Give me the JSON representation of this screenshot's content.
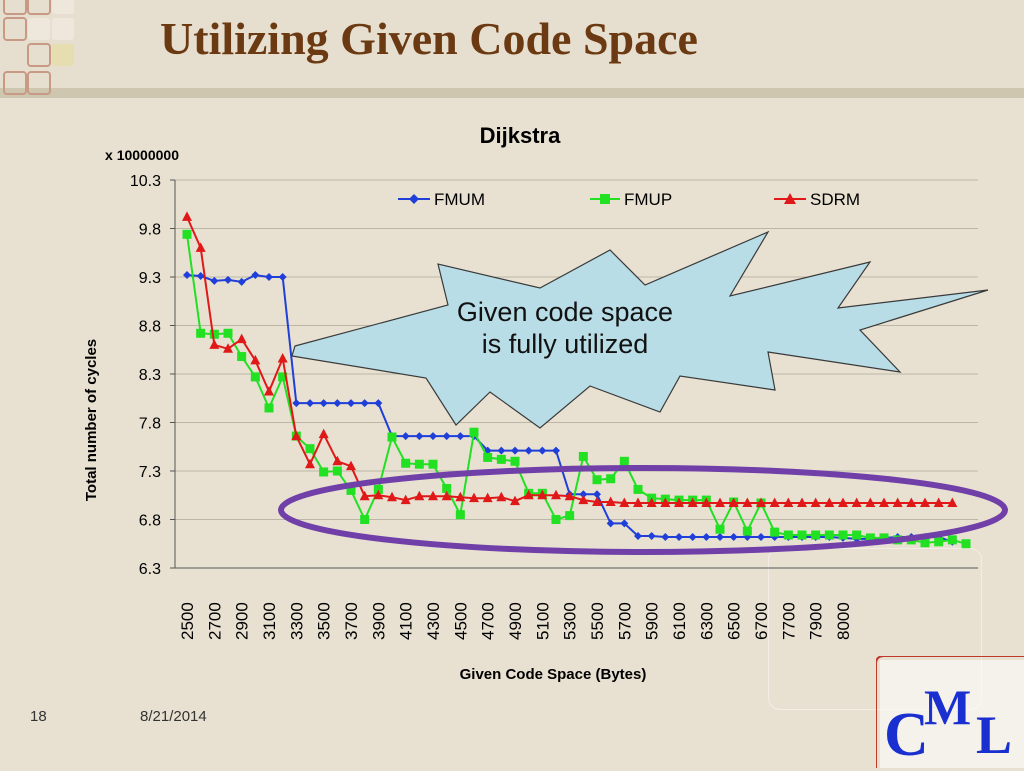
{
  "slide": {
    "title": "Utilizing Given Code Space",
    "page_number": "18",
    "date": "8/21/2014",
    "logo": {
      "c": "C",
      "m": "M",
      "l": "L"
    }
  },
  "callout": {
    "line1": "Given code space",
    "line2": "is fully utilized"
  },
  "colors": {
    "fmum": "#1f3fd8",
    "fmup": "#22e022",
    "sdrm": "#e01818",
    "ellipse": "#7040a8",
    "callout_fill": "#b8dde6",
    "title": "#6b3a12"
  },
  "chart_data": {
    "type": "line",
    "title": "Dijkstra",
    "multiplier_label": "x 10000000",
    "xlabel": "Given Code Space (Bytes)",
    "ylabel": "Total number of cycles",
    "ylim": [
      6.3,
      10.3
    ],
    "yticks": [
      "10.3",
      "9.8",
      "9.3",
      "8.8",
      "8.3",
      "7.8",
      "7.3",
      "6.8",
      "6.3"
    ],
    "ytick_values": [
      10.3,
      9.8,
      9.3,
      8.8,
      8.3,
      7.8,
      7.3,
      6.8,
      6.3
    ],
    "xtick_labels": [
      "2500",
      "2700",
      "2900",
      "3100",
      "3300",
      "3500",
      "3700",
      "3900",
      "4100",
      "4300",
      "4500",
      "4700",
      "4900",
      "5100",
      "5300",
      "5500",
      "5700",
      "5900",
      "6100",
      "6300",
      "6500",
      "6700",
      "7700",
      "7900",
      "8000"
    ],
    "legend_position": "top",
    "grid": true,
    "series": [
      {
        "name": "FMUM",
        "marker": "diamond",
        "values": [
          9.32,
          9.31,
          9.26,
          9.27,
          9.25,
          9.32,
          9.3,
          9.3,
          8.0,
          8.0,
          8.0,
          8.0,
          8.0,
          8.0,
          8.0,
          7.66,
          7.66,
          7.66,
          7.66,
          7.66,
          7.66,
          7.66,
          7.51,
          7.51,
          7.51,
          7.51,
          7.51,
          7.51,
          7.06,
          7.06,
          7.06,
          6.76,
          6.76,
          6.63,
          6.63,
          6.62,
          6.62,
          6.62,
          6.62,
          6.62,
          6.62,
          6.62,
          6.62,
          6.62,
          6.62,
          6.62,
          6.62,
          6.62,
          6.61,
          6.6,
          6.6,
          6.61,
          6.62,
          6.62,
          6.62,
          6.62,
          6.57
        ]
      },
      {
        "name": "FMUP",
        "marker": "square",
        "values": [
          9.74,
          8.72,
          8.71,
          8.72,
          8.48,
          8.27,
          7.95,
          8.27,
          7.66,
          7.53,
          7.29,
          7.3,
          7.1,
          6.8,
          7.11,
          7.65,
          7.38,
          7.37,
          7.37,
          7.12,
          6.85,
          7.7,
          7.44,
          7.42,
          7.4,
          7.07,
          7.07,
          6.8,
          6.84,
          7.45,
          7.21,
          7.22,
          7.4,
          7.11,
          7.02,
          7.01,
          7.0,
          7.0,
          7.0,
          6.7,
          6.98,
          6.68,
          6.97,
          6.67,
          6.64,
          6.64,
          6.64,
          6.64,
          6.64,
          6.64,
          6.61,
          6.61,
          6.59,
          6.59,
          6.56,
          6.57,
          6.59,
          6.55
        ]
      },
      {
        "name": "SDRM",
        "marker": "triangle",
        "values": [
          9.92,
          9.6,
          8.6,
          8.56,
          8.66,
          8.44,
          8.12,
          8.46,
          7.66,
          7.37,
          7.68,
          7.4,
          7.35,
          7.04,
          7.05,
          7.03,
          7.0,
          7.04,
          7.04,
          7.04,
          7.03,
          7.02,
          7.02,
          7.03,
          6.99,
          7.05,
          7.05,
          7.05,
          7.04,
          7.0,
          6.98,
          6.98,
          6.97,
          6.97,
          6.97,
          6.97,
          6.97,
          6.97,
          6.97,
          6.97,
          6.97,
          6.97,
          6.97,
          6.97,
          6.97,
          6.97,
          6.97,
          6.97,
          6.97,
          6.97,
          6.97,
          6.97,
          6.97,
          6.97,
          6.97,
          6.97,
          6.97
        ]
      }
    ]
  }
}
